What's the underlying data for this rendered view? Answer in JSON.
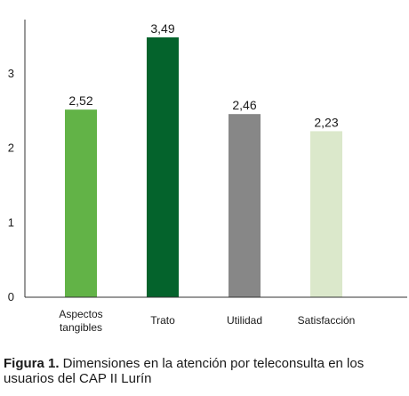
{
  "chart_data": {
    "type": "bar",
    "title": "",
    "xlabel": "",
    "ylabel": "",
    "categories": [
      "Aspectos tangibles",
      "Trato",
      "Utilidad",
      "Satisfacción"
    ],
    "category_lines": [
      [
        "Aspectos",
        "tangibles"
      ],
      [
        "Trato"
      ],
      [
        "Utilidad"
      ],
      [
        "Satisfacción"
      ]
    ],
    "values": [
      2.52,
      3.49,
      2.46,
      2.23
    ],
    "value_labels": [
      "2,52",
      "3,49",
      "2,46",
      "2,23"
    ],
    "bar_colors": [
      "#62b347",
      "#04632c",
      "#878787",
      "#dbe8cb"
    ],
    "ylim": [
      0,
      3.49
    ],
    "yticks": [
      0,
      1,
      2,
      3
    ],
    "ytick_labels": [
      "0",
      "1",
      "2",
      "3"
    ],
    "grid": false,
    "legend": "none"
  },
  "caption": {
    "label": "Figura 1.",
    "text": " Dimensiones en la atención por teleconsulta en los usuarios del CAP II Lurín"
  }
}
